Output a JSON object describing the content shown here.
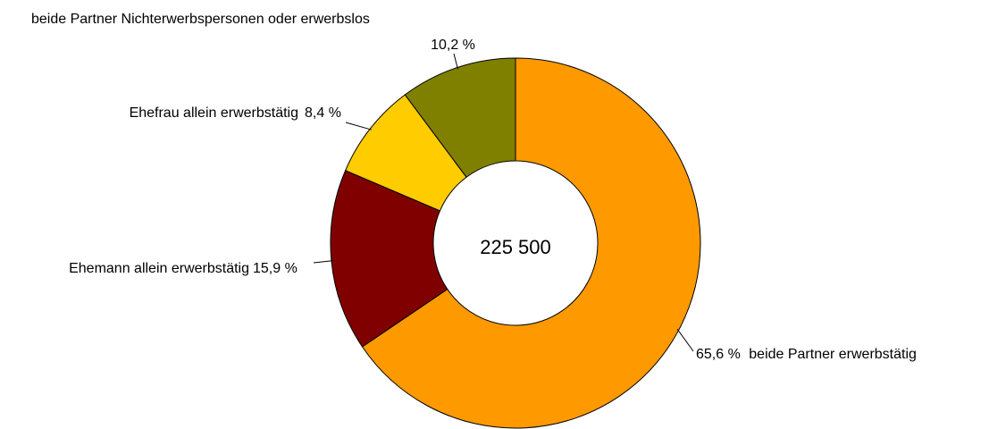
{
  "chart_data": {
    "type": "pie",
    "donut": true,
    "center_label": "225 500",
    "slices": [
      {
        "label": "beide Partner erwerbstätig",
        "value": 65.6,
        "value_label": "65,6 %",
        "color": "#ff9900"
      },
      {
        "label": "Ehemann allein erwerbstätig",
        "value": 15.9,
        "value_label": "15,9 %",
        "color": "#800000"
      },
      {
        "label": "Ehefrau allein erwerbstätig",
        "value": 8.4,
        "value_label": "8,4 %",
        "color": "#ffcc00"
      },
      {
        "label": "beide Partner Nichterwerbspersonen oder erwerbslos",
        "value": 10.2,
        "value_label": "10,2 %",
        "color": "#808000"
      }
    ],
    "start_angle": "12 o'clock",
    "direction": "clockwise",
    "legend": "none",
    "outline_color": "#000000"
  }
}
